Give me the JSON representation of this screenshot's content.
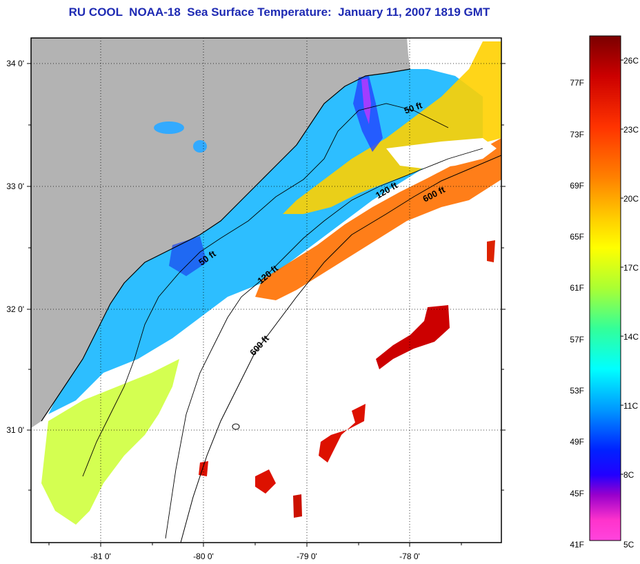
{
  "title": "RU COOL  NOAA-18  Sea Surface Temperature:  January 11, 2007 1819 GMT",
  "map": {
    "x_ticks": [
      "-81 0'",
      "-80 0'",
      "-79 0'",
      "-78 0'"
    ],
    "y_ticks": [
      "34 0'",
      "33 0'",
      "32 0'",
      "31 0'"
    ],
    "contours": [
      {
        "label": "50 ft"
      },
      {
        "label": "50 ft"
      },
      {
        "label": "120 ft"
      },
      {
        "label": "120 ft"
      },
      {
        "label": "600 ft"
      },
      {
        "label": "600 ft"
      }
    ],
    "colors": {
      "land": "#b3b3b3",
      "cloud": "#ffffff",
      "frame": "#000000"
    }
  },
  "colorbar": {
    "celsius_labels": [
      "26C",
      "23C",
      "20C",
      "17C",
      "14C",
      "11C",
      "8C",
      "5C"
    ],
    "fahrenheit_labels": [
      "77F",
      "73F",
      "69F",
      "65F",
      "61F",
      "57F",
      "53F",
      "49F",
      "45F",
      "41F"
    ],
    "gradient": [
      "#7a0000",
      "#cc0000",
      "#ff3300",
      "#ff8000",
      "#ffcc00",
      "#ffff00",
      "#aaff33",
      "#33ff99",
      "#00ffff",
      "#0099ff",
      "#0022ff",
      "#2200ff",
      "#9900cc",
      "#ff33cc",
      "#ff44dd"
    ]
  }
}
